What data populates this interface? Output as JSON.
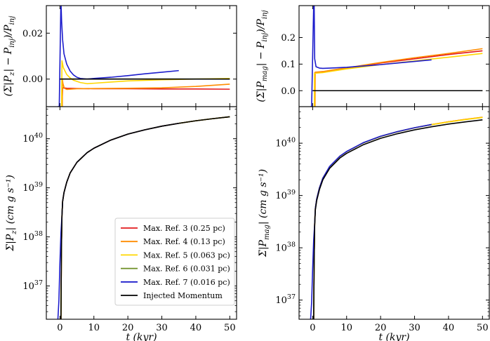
{
  "chart_data": [
    {
      "id": "tl",
      "type": "line",
      "ylabel": "(Σ|P_z| − P_inj)/P_inj",
      "xlabel": "",
      "xlim": [
        -4,
        52
      ],
      "ylim": [
        -0.012,
        0.032
      ],
      "yscale": "linear",
      "yticks": [
        {
          "v": 0.0,
          "label": "0.00"
        },
        {
          "v": 0.02,
          "label": "0.02"
        }
      ],
      "xticks": [],
      "series": [
        {
          "name": "Max. Ref. 3 (0.25 pc)",
          "color": "#e31a1c",
          "x": [
            0.55,
            0.8,
            1,
            2,
            5,
            10,
            20,
            30,
            40,
            50
          ],
          "y": [
            -0.012,
            -0.004,
            -0.0038,
            -0.004,
            -0.0041,
            -0.0042,
            -0.0042,
            -0.0043,
            -0.0043,
            -0.0044
          ]
        },
        {
          "name": "Max. Ref. 4 (0.13 pc)",
          "color": "#ff8c00",
          "x": [
            0.7,
            0.75,
            0.9,
            1.3,
            2,
            5,
            10,
            20,
            30,
            40,
            50
          ],
          "y": [
            -0.012,
            -0.0005,
            -0.002,
            -0.004,
            -0.0045,
            -0.0042,
            -0.0041,
            -0.004,
            -0.0038,
            -0.0032,
            -0.0022
          ]
        },
        {
          "name": "Max. Ref. 5 (0.063 pc)",
          "color": "#ffd700",
          "x": [
            0.5,
            0.6,
            1,
            2,
            3,
            4,
            6,
            8,
            10,
            15,
            20,
            30,
            40,
            50
          ],
          "y": [
            -0.012,
            0.008,
            0.005,
            0.002,
            0.0005,
            -0.0005,
            -0.0015,
            -0.002,
            -0.0018,
            -0.0013,
            -0.0008,
            -0.0003,
            0.0,
            0.0003
          ]
        },
        {
          "name": "Max. Ref. 6 (0.031 pc)",
          "color": "#6b8e23",
          "x": [
            0.6,
            1,
            2,
            5,
            10,
            20,
            30,
            40,
            50
          ],
          "y": [
            0.0,
            0.0,
            0.0,
            0.0,
            0.0,
            0.0,
            0.0,
            0.0,
            0.0
          ]
        },
        {
          "name": "Max. Ref. 7 (0.016 pc)",
          "color": "#1c1ccc",
          "x": [
            -0.7,
            -0.2,
            0.25,
            0.35,
            0.5,
            0.8,
            1.2,
            2,
            3,
            4,
            5,
            6,
            8,
            10,
            15,
            20,
            25,
            30,
            35
          ],
          "y": [
            -0.012,
            -0.012,
            0.03,
            0.032,
            0.025,
            0.017,
            0.011,
            0.0065,
            0.0035,
            0.0018,
            0.0008,
            0.0003,
            0.0,
            0.0003,
            0.0008,
            0.0015,
            0.0023,
            0.003,
            0.0037
          ]
        },
        {
          "name": "Injected Momentum",
          "color": "#000000",
          "x": [
            0,
            50
          ],
          "y": [
            0.0,
            0.0
          ]
        }
      ]
    },
    {
      "id": "tr",
      "type": "line",
      "ylabel": "(Σ|P_mag| − P_inj)/P_inj",
      "xlabel": "",
      "xlim": [
        -4,
        52
      ],
      "ylim": [
        -0.06,
        0.32
      ],
      "yscale": "linear",
      "yticks": [
        {
          "v": 0.0,
          "label": "0.0"
        },
        {
          "v": 0.1,
          "label": "0.1"
        },
        {
          "v": 0.2,
          "label": "0.2"
        }
      ],
      "xticks": [],
      "series": [
        {
          "name": "Max. Ref. 3 (0.25 pc)",
          "color": "#e31a1c",
          "x": [
            0.6,
            0.65,
            1,
            3,
            5,
            10,
            20,
            30,
            40,
            50
          ],
          "y": [
            -0.06,
            0.068,
            0.068,
            0.07,
            0.074,
            0.084,
            0.104,
            0.12,
            0.136,
            0.15
          ]
        },
        {
          "name": "Max. Ref. 4 (0.13 pc)",
          "color": "#ff8c00",
          "x": [
            0.7,
            0.75,
            1,
            3,
            5,
            10,
            20,
            30,
            40,
            50
          ],
          "y": [
            -0.06,
            0.07,
            0.07,
            0.072,
            0.076,
            0.086,
            0.106,
            0.124,
            0.14,
            0.158
          ]
        },
        {
          "name": "Max. Ref. 5 (0.063 pc)",
          "color": "#ffd700",
          "x": [
            0.5,
            0.55,
            1,
            3,
            5,
            10,
            20,
            30,
            40,
            50
          ],
          "y": [
            -0.06,
            0.065,
            0.066,
            0.068,
            0.072,
            0.082,
            0.098,
            0.112,
            0.126,
            0.14
          ]
        },
        {
          "name": "Max. Ref. 6 (0.031 pc)",
          "color": "#6b8e23",
          "x": [
            0.6,
            1,
            10,
            50
          ],
          "y": [
            0.0,
            0.0,
            0.0,
            0.0
          ]
        },
        {
          "name": "Max. Ref. 7 (0.016 pc)",
          "color": "#1c1ccc",
          "x": [
            -0.7,
            -0.3,
            0.3,
            0.45,
            0.6,
            1,
            2,
            3,
            5,
            10,
            15,
            20,
            25,
            30,
            35
          ],
          "y": [
            -0.06,
            -0.06,
            0.32,
            0.32,
            0.12,
            0.09,
            0.085,
            0.084,
            0.085,
            0.088,
            0.093,
            0.098,
            0.104,
            0.11,
            0.116
          ]
        },
        {
          "name": "Injected Momentum",
          "color": "#000000",
          "x": [
            0,
            50
          ],
          "y": [
            0.0,
            0.0
          ]
        }
      ]
    },
    {
      "id": "bl",
      "type": "line",
      "ylabel": "Σ|P_z| (cm g s⁻¹)",
      "xlabel": "t (kyr)",
      "xlim": [
        -4,
        52
      ],
      "ylim": [
        2.1e+36,
        4.5e+40
      ],
      "yscale": "log",
      "yticks": [
        {
          "v": 1e+37,
          "label": "10^37"
        },
        {
          "v": 1e+38,
          "label": "10^38"
        },
        {
          "v": 1e+39,
          "label": "10^39"
        },
        {
          "v": 1e+40,
          "label": "10^40"
        }
      ],
      "xticks": [
        {
          "v": 0,
          "label": "0"
        },
        {
          "v": 10,
          "label": "10"
        },
        {
          "v": 20,
          "label": "20"
        },
        {
          "v": 30,
          "label": "30"
        },
        {
          "v": 40,
          "label": "40"
        },
        {
          "v": 50,
          "label": "50"
        }
      ],
      "series": [
        {
          "name": "Max. Ref. 3 (0.25 pc)",
          "color": "#e31a1c",
          "x": [
            0.3,
            0.45,
            0.6,
            0.8,
            1.2,
            2,
            3,
            5,
            8,
            10,
            15,
            20,
            25,
            30,
            35,
            40,
            45,
            50
          ],
          "y": [
            2.1e+36,
            6e+37,
            2.7e+38,
            5.3e+38,
            8e+38,
            1.3e+39,
            2e+39,
            3.3e+39,
            5.2e+39,
            6.4e+39,
            9.4e+39,
            1.24e+40,
            1.52e+40,
            1.8e+40,
            2.06e+40,
            2.32e+40,
            2.56e+40,
            2.8e+40
          ]
        },
        {
          "name": "Max. Ref. 4 (0.13 pc)",
          "color": "#ff8c00",
          "x": [
            0.3,
            0.45,
            0.6,
            0.8,
            1.2,
            2,
            3,
            5,
            8,
            10,
            15,
            20,
            25,
            30,
            35,
            40,
            45,
            50
          ],
          "y": [
            2.1e+36,
            6e+37,
            2.7e+38,
            5.3e+38,
            8e+38,
            1.3e+39,
            2e+39,
            3.3e+39,
            5.2e+39,
            6.4e+39,
            9.4e+39,
            1.24e+40,
            1.52e+40,
            1.8e+40,
            2.06e+40,
            2.32e+40,
            2.56e+40,
            2.8e+40
          ]
        },
        {
          "name": "Max. Ref. 5 (0.063 pc)",
          "color": "#ffd700",
          "x": [
            0.3,
            0.45,
            0.6,
            0.8,
            1.2,
            2,
            3,
            5,
            8,
            10,
            15,
            20,
            25,
            30,
            35,
            40,
            45,
            50
          ],
          "y": [
            2.1e+36,
            6e+37,
            2.7e+38,
            5.3e+38,
            8e+38,
            1.3e+39,
            2e+39,
            3.3e+39,
            5.2e+39,
            6.4e+39,
            9.4e+39,
            1.24e+40,
            1.52e+40,
            1.8e+40,
            2.06e+40,
            2.32e+40,
            2.56e+40,
            2.8e+40
          ]
        },
        {
          "name": "Max. Ref. 6 (0.031 pc)",
          "color": "#6b8e23",
          "x": [
            0.3,
            0.45,
            0.6,
            0.8,
            1.2,
            2,
            3,
            5,
            8,
            10,
            15,
            20,
            25,
            30,
            35,
            40,
            45,
            50
          ],
          "y": [
            2.1e+36,
            6e+37,
            2.7e+38,
            5.3e+38,
            8e+38,
            1.3e+39,
            2e+39,
            3.3e+39,
            5.2e+39,
            6.4e+39,
            9.4e+39,
            1.24e+40,
            1.52e+40,
            1.8e+40,
            2.06e+40,
            2.32e+40,
            2.56e+40,
            2.8e+40
          ]
        },
        {
          "name": "Max. Ref. 7 (0.016 pc)",
          "color": "#1c1ccc",
          "x": [
            -0.6,
            -0.3,
            0.0,
            0.3,
            0.6,
            0.8,
            1.2,
            2,
            3,
            5,
            8,
            10,
            15,
            20,
            25,
            30,
            35
          ],
          "y": [
            2.1e+36,
            5e+36,
            3e+37,
            1.2e+38,
            2.7e+38,
            5.3e+38,
            8e+38,
            1.3e+39,
            2e+39,
            3.3e+39,
            5.2e+39,
            6.4e+39,
            9.4e+39,
            1.24e+40,
            1.52e+40,
            1.8e+40,
            2.06e+40
          ]
        },
        {
          "name": "Injected Momentum",
          "color": "#000000",
          "x": [
            0.3,
            0.45,
            0.6,
            0.8,
            1.2,
            2,
            3,
            5,
            8,
            10,
            15,
            20,
            25,
            30,
            35,
            40,
            45,
            50
          ],
          "y": [
            2.1e+36,
            6e+37,
            2.7e+38,
            5.3e+38,
            8e+38,
            1.3e+39,
            2e+39,
            3.3e+39,
            5.2e+39,
            6.4e+39,
            9.4e+39,
            1.24e+40,
            1.52e+40,
            1.8e+40,
            2.06e+40,
            2.32e+40,
            2.56e+40,
            2.8e+40
          ]
        }
      ]
    },
    {
      "id": "br",
      "type": "line",
      "ylabel": "Σ|P_mag| (cm g s⁻¹)",
      "xlabel": "t (kyr)",
      "xlim": [
        -4,
        52
      ],
      "ylim": [
        4.3e+36,
        5e+40
      ],
      "yscale": "log",
      "yticks": [
        {
          "v": 1e+37,
          "label": "10^37"
        },
        {
          "v": 1e+38,
          "label": "10^38"
        },
        {
          "v": 1e+39,
          "label": "10^39"
        },
        {
          "v": 1e+40,
          "label": "10^40"
        }
      ],
      "xticks": [
        {
          "v": 0,
          "label": "0"
        },
        {
          "v": 10,
          "label": "10"
        },
        {
          "v": 20,
          "label": "20"
        },
        {
          "v": 30,
          "label": "30"
        },
        {
          "v": 40,
          "label": "40"
        },
        {
          "v": 50,
          "label": "50"
        }
      ],
      "series": [
        {
          "name": "Max. Ref. 3 (0.25 pc)",
          "color": "#e31a1c",
          "x": [
            0.3,
            0.45,
            0.6,
            0.8,
            1.2,
            2,
            3,
            5,
            8,
            10,
            15,
            20,
            25,
            30,
            35,
            40,
            45,
            50
          ],
          "y": [
            4.3e+36,
            6.4e+37,
            2.9e+38,
            5.7e+38,
            8.6e+38,
            1.4e+39,
            2.15e+39,
            3.55e+39,
            5.6e+39,
            6.9e+39,
            1.02e+40,
            1.35e+40,
            1.66e+40,
            1.97e+40,
            2.27e+40,
            2.57e+40,
            2.85e+40,
            3.12e+40
          ]
        },
        {
          "name": "Max. Ref. 4 (0.13 pc)",
          "color": "#ff8c00",
          "x": [
            0.3,
            0.45,
            0.6,
            0.8,
            1.2,
            2,
            3,
            5,
            8,
            10,
            15,
            20,
            25,
            30,
            35,
            40,
            45,
            50
          ],
          "y": [
            4.3e+36,
            6.4e+37,
            2.9e+38,
            5.7e+38,
            8.6e+38,
            1.4e+39,
            2.15e+39,
            3.55e+39,
            5.6e+39,
            6.9e+39,
            1.02e+40,
            1.35e+40,
            1.66e+40,
            1.97e+40,
            2.27e+40,
            2.57e+40,
            2.86e+40,
            3.14e+40
          ]
        },
        {
          "name": "Max. Ref. 5 (0.063 pc)",
          "color": "#ffd700",
          "x": [
            0.3,
            0.45,
            0.6,
            0.8,
            1.2,
            2,
            3,
            5,
            8,
            10,
            15,
            20,
            25,
            30,
            35,
            40,
            45,
            50
          ],
          "y": [
            4.3e+36,
            6.4e+37,
            2.9e+38,
            5.7e+38,
            8.6e+38,
            1.4e+39,
            2.15e+39,
            3.55e+39,
            5.6e+39,
            6.9e+39,
            1.02e+40,
            1.35e+40,
            1.66e+40,
            1.97e+40,
            2.26e+40,
            2.55e+40,
            2.83e+40,
            3.1e+40
          ]
        },
        {
          "name": "Max. Ref. 6 (0.031 pc)",
          "color": "#6b8e23",
          "x": [
            0.3,
            0.45,
            0.6,
            0.8,
            1.2,
            2,
            3,
            5,
            8,
            10,
            15,
            20,
            25,
            30,
            35
          ],
          "y": [
            4.3e+36,
            6.4e+37,
            2.9e+38,
            5.7e+38,
            8.6e+38,
            1.4e+39,
            2.15e+39,
            3.55e+39,
            5.6e+39,
            6.9e+39,
            1.02e+40,
            1.35e+40,
            1.66e+40,
            1.97e+40,
            2.27e+40
          ]
        },
        {
          "name": "Max. Ref. 7 (0.016 pc)",
          "color": "#1c1ccc",
          "x": [
            -0.6,
            -0.3,
            0.0,
            0.3,
            0.6,
            0.8,
            1.2,
            2,
            3,
            5,
            8,
            10,
            15,
            20,
            25,
            30,
            35
          ],
          "y": [
            4.3e+36,
            9e+36,
            4e+37,
            1.4e+38,
            2.9e+38,
            5.7e+38,
            8.6e+38,
            1.4e+39,
            2.15e+39,
            3.6e+39,
            5.65e+39,
            6.95e+39,
            1.03e+40,
            1.36e+40,
            1.67e+40,
            1.98e+40,
            2.28e+40
          ]
        },
        {
          "name": "Injected Momentum",
          "color": "#000000",
          "x": [
            0.3,
            0.45,
            0.6,
            0.8,
            1.2,
            2,
            3,
            5,
            8,
            10,
            15,
            20,
            25,
            30,
            35,
            40,
            45,
            50
          ],
          "y": [
            4.3e+36,
            6e+37,
            2.7e+38,
            5.3e+38,
            8e+38,
            1.3e+39,
            2e+39,
            3.3e+39,
            5.2e+39,
            6.4e+39,
            9.4e+39,
            1.24e+40,
            1.52e+40,
            1.8e+40,
            2.06e+40,
            2.32e+40,
            2.56e+40,
            2.8e+40
          ]
        }
      ]
    }
  ],
  "legend": {
    "placement": "lower-right of bottom-left panel",
    "entries": [
      {
        "label": "Max. Ref. 3 (0.25 pc)",
        "color": "#e31a1c"
      },
      {
        "label": "Max. Ref. 4 (0.13 pc)",
        "color": "#ff8c00"
      },
      {
        "label": "Max. Ref. 5 (0.063 pc)",
        "color": "#ffd700"
      },
      {
        "label": "Max. Ref. 6 (0.031 pc)",
        "color": "#6b8e23"
      },
      {
        "label": "Max. Ref. 7 (0.016 pc)",
        "color": "#1c1ccc"
      },
      {
        "label": "Injected Momentum",
        "color": "#000000"
      }
    ]
  }
}
